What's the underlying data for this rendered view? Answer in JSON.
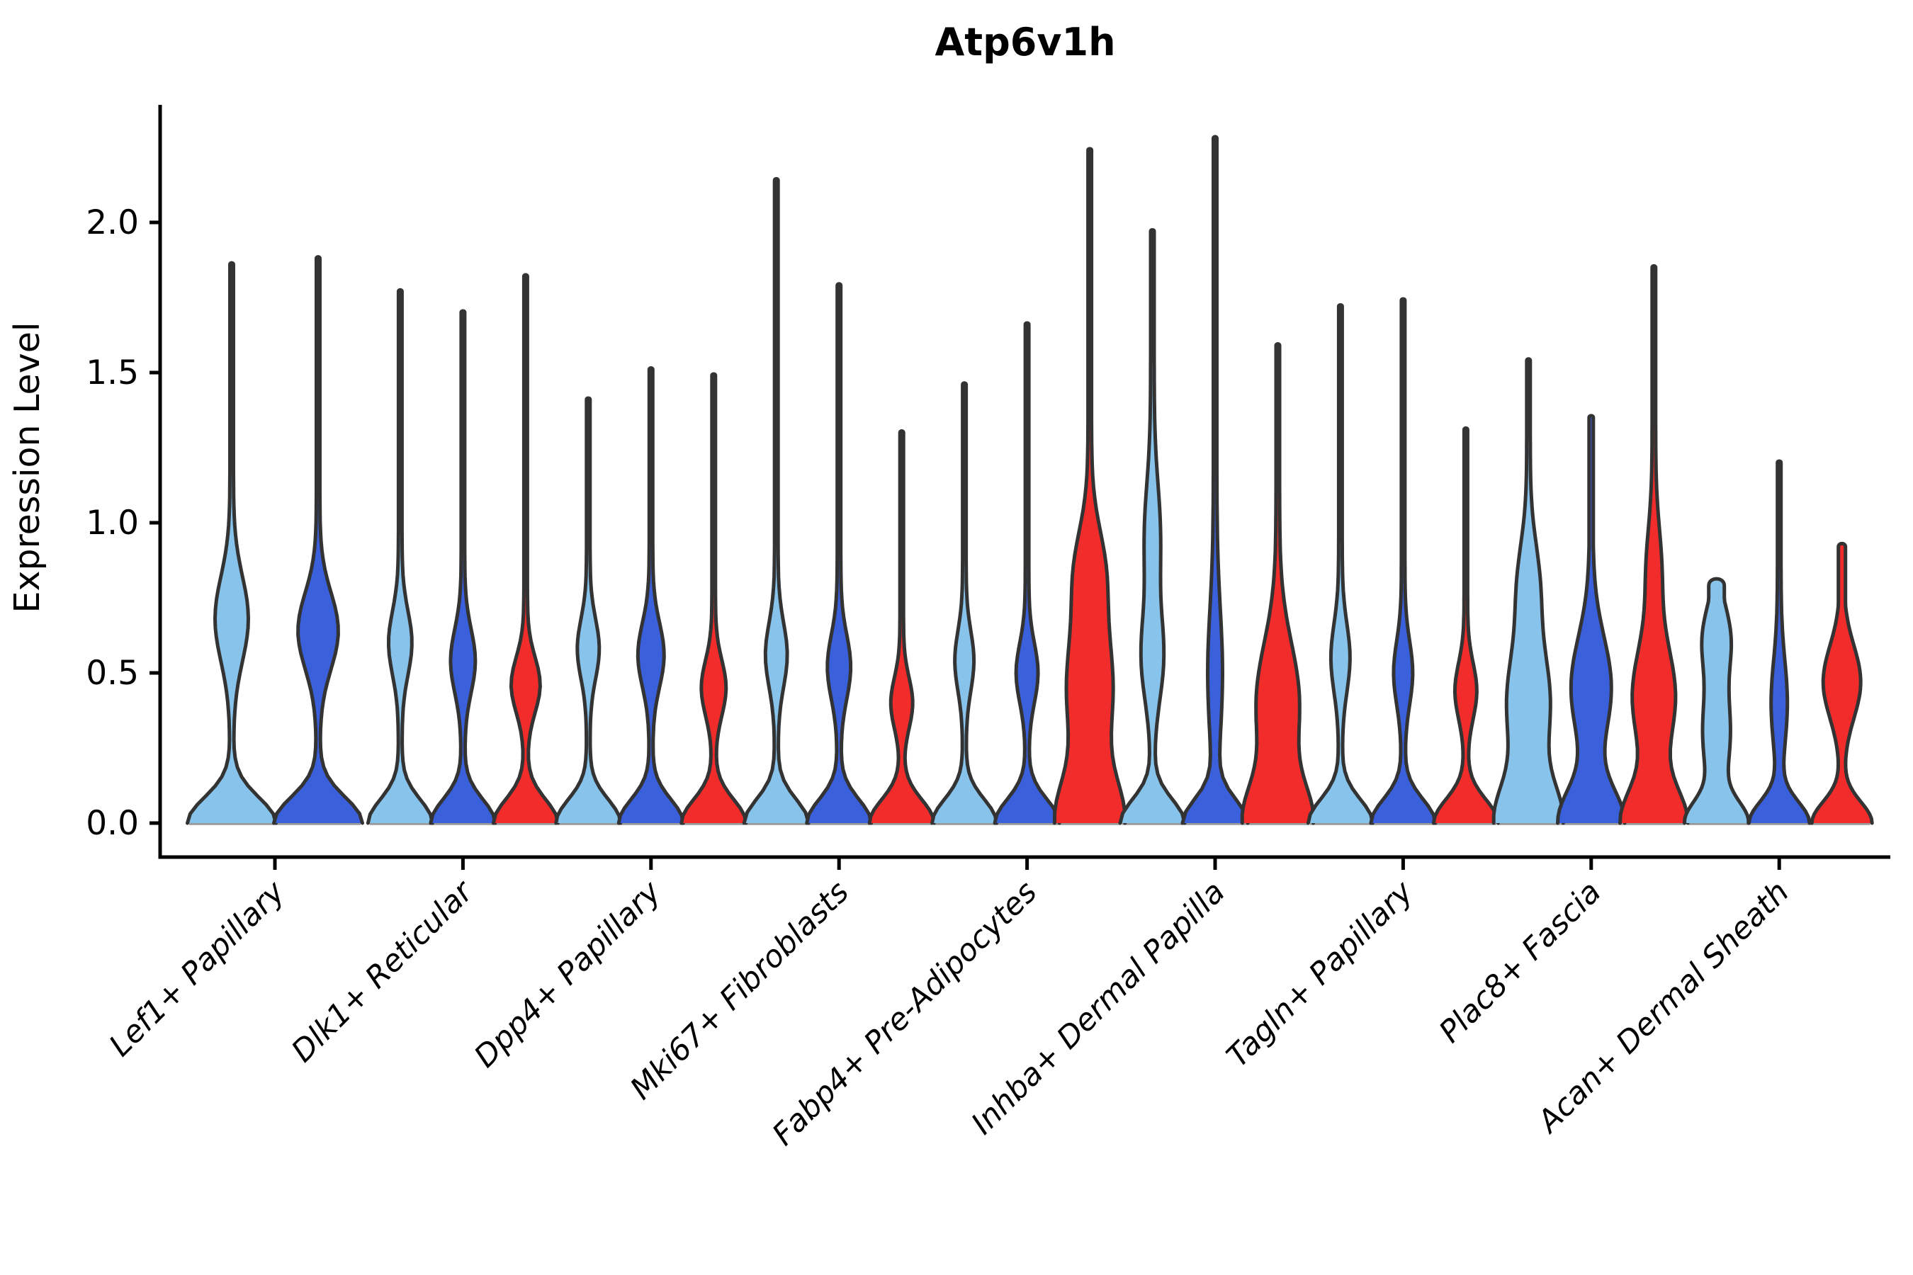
{
  "title": "Atp6v1h",
  "y_axis_label": "Expression Level",
  "chart_data": {
    "type": "violin",
    "title": "Atp6v1h",
    "xlabel": "",
    "ylabel": "Expression Level",
    "ylim": [
      0,
      2.4
    ],
    "grid": false,
    "legend": "none",
    "ytick_labels": [
      "0.0",
      "0.5",
      "1.0",
      "1.5",
      "2.0"
    ],
    "ytick_values": [
      0.0,
      0.5,
      1.0,
      1.5,
      2.0
    ],
    "series_colors": [
      "#87C3EA",
      "#3B60DC",
      "#F22B2B"
    ],
    "outline_color": "#333333",
    "axis_color": "#000000",
    "baseline_color": "#999999",
    "categories": [
      "Lef1+ Papillary",
      "Dlk1+ Reticular",
      "Dpp4+ Papillary",
      "Mki67+ Fibroblasts",
      "Fabp4+ Pre-Adipocytes",
      "Inhba+ Dermal Papilla",
      "Tagln+ Papillary",
      "Plac8+ Fascia",
      "Acan+ Dermal Sheath"
    ],
    "groups": [
      {
        "category": "Lef1+ Papillary",
        "violins": [
          {
            "series": 0,
            "peak": 1.86,
            "base": 60,
            "bd": 0.12,
            "bulges": [
              [
                0.68,
                21,
                0.2
              ]
            ],
            "tip": 2.5
          },
          {
            "series": 1,
            "peak": 1.88,
            "base": 60,
            "bd": 0.12,
            "bulges": [
              [
                0.64,
                26,
                0.18
              ]
            ],
            "tip": 2.5
          }
        ]
      },
      {
        "category": "Dlk1+ Reticular",
        "violins": [
          {
            "series": 0,
            "peak": 1.77,
            "base": 43,
            "bd": 0.11,
            "bulges": [
              [
                0.6,
                14,
                0.15
              ]
            ],
            "tip": 2.5
          },
          {
            "series": 1,
            "peak": 1.7,
            "base": 43,
            "bd": 0.11,
            "bulges": [
              [
                0.54,
                15,
                0.15
              ]
            ],
            "tip": 2.5
          },
          {
            "series": 2,
            "peak": 1.82,
            "base": 43,
            "bd": 0.11,
            "bulges": [
              [
                0.46,
                18,
                0.13
              ]
            ],
            "tip": 2.5
          }
        ]
      },
      {
        "category": "Dpp4+ Papillary",
        "violins": [
          {
            "series": 0,
            "peak": 1.41,
            "base": 43,
            "bd": 0.11,
            "bulges": [
              [
                0.58,
                13,
                0.14
              ]
            ],
            "tip": 2.5
          },
          {
            "series": 1,
            "peak": 1.51,
            "base": 43,
            "bd": 0.11,
            "bulges": [
              [
                0.56,
                16,
                0.15
              ]
            ],
            "tip": 2.5
          },
          {
            "series": 2,
            "peak": 1.49,
            "base": 43,
            "bd": 0.11,
            "bulges": [
              [
                0.45,
                15,
                0.13
              ]
            ],
            "tip": 2.5
          }
        ]
      },
      {
        "category": "Mki67+ Fibroblasts",
        "violins": [
          {
            "series": 0,
            "peak": 2.14,
            "base": 43,
            "bd": 0.11,
            "bulges": [
              [
                0.56,
                13,
                0.15
              ]
            ],
            "tip": 2.5
          },
          {
            "series": 1,
            "peak": 1.79,
            "base": 43,
            "bd": 0.11,
            "bulges": [
              [
                0.52,
                14,
                0.15
              ]
            ],
            "tip": 2.5
          },
          {
            "series": 2,
            "peak": 1.3,
            "base": 43,
            "bd": 0.11,
            "bulges": [
              [
                0.4,
                13,
                0.12
              ]
            ],
            "tip": 2.5
          }
        ]
      },
      {
        "category": "Fabp4+ Pre-Adipocytes",
        "violins": [
          {
            "series": 0,
            "peak": 1.46,
            "base": 43,
            "bd": 0.11,
            "bulges": [
              [
                0.54,
                11,
                0.14
              ]
            ],
            "tip": 2.5
          },
          {
            "series": 1,
            "peak": 1.66,
            "base": 43,
            "bd": 0.11,
            "bulges": [
              [
                0.5,
                13,
                0.14
              ]
            ],
            "tip": 2.5
          },
          {
            "series": 2,
            "peak": 2.24,
            "base": 44,
            "bd": 0.2,
            "bulges": [
              [
                0.45,
                30,
                0.3
              ],
              [
                0.85,
                16,
                0.2
              ]
            ],
            "tip": 2.5
          }
        ]
      },
      {
        "category": "Inhba+ Dermal Papilla",
        "violins": [
          {
            "series": 0,
            "peak": 1.97,
            "base": 43,
            "bd": 0.11,
            "bulges": [
              [
                0.55,
                13,
                0.2
              ],
              [
                0.95,
                9,
                0.25
              ]
            ],
            "tip": 2.5
          },
          {
            "series": 1,
            "peak": 2.28,
            "base": 43,
            "bd": 0.11,
            "bulges": [
              [
                0.5,
                8,
                0.3
              ]
            ],
            "tip": 2.5
          },
          {
            "series": 2,
            "peak": 1.59,
            "base": 44,
            "bd": 0.18,
            "bulges": [
              [
                0.4,
                28,
                0.28
              ]
            ],
            "tip": 2.5
          }
        ]
      },
      {
        "category": "Tagln+ Papillary",
        "violins": [
          {
            "series": 0,
            "peak": 1.72,
            "base": 43,
            "bd": 0.11,
            "bulges": [
              [
                0.55,
                11,
                0.16
              ]
            ],
            "tip": 2.5
          },
          {
            "series": 1,
            "peak": 1.74,
            "base": 43,
            "bd": 0.11,
            "bulges": [
              [
                0.5,
                11,
                0.15
              ]
            ],
            "tip": 2.5
          },
          {
            "series": 2,
            "peak": 1.31,
            "base": 43,
            "bd": 0.11,
            "bulges": [
              [
                0.44,
                13,
                0.13
              ]
            ],
            "tip": 2.5
          }
        ]
      },
      {
        "category": "Plac8+ Fascia",
        "violins": [
          {
            "series": 0,
            "peak": 1.54,
            "base": 44,
            "bd": 0.18,
            "bulges": [
              [
                0.4,
                28,
                0.26
              ],
              [
                0.8,
                12,
                0.2
              ]
            ],
            "tip": 2.5
          },
          {
            "series": 1,
            "peak": 1.35,
            "base": 44,
            "bd": 0.16,
            "bulges": [
              [
                0.45,
                26,
                0.24
              ]
            ],
            "tip": 3
          },
          {
            "series": 2,
            "peak": 1.85,
            "base": 44,
            "bd": 0.16,
            "bulges": [
              [
                0.42,
                28,
                0.24
              ],
              [
                0.85,
                8,
                0.2
              ]
            ],
            "tip": 2.5
          }
        ]
      },
      {
        "category": "Acan+ Dermal Sheath",
        "violins": [
          {
            "series": 0,
            "peak": 0.79,
            "base": 40,
            "bd": 0.1,
            "bulges": [
              [
                0.3,
                17,
                0.22
              ],
              [
                0.62,
                16,
                0.15
              ]
            ],
            "tip": 11
          },
          {
            "series": 1,
            "peak": 1.2,
            "base": 40,
            "bd": 0.1,
            "bulges": [
              [
                0.4,
                9,
                0.2
              ]
            ],
            "tip": 2.5
          },
          {
            "series": 2,
            "peak": 0.92,
            "base": 40,
            "bd": 0.1,
            "bulges": [
              [
                0.47,
                24,
                0.17
              ]
            ],
            "tip": 5
          }
        ]
      }
    ]
  }
}
